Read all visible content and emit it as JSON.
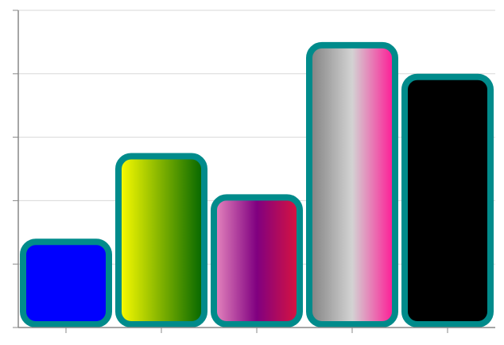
{
  "chart_data": {
    "type": "bar",
    "categories": [
      null,
      null,
      null,
      null,
      null
    ],
    "values": [
      1.4,
      2.75,
      2.1,
      4.5,
      4.0
    ],
    "colors": [
      [
        "#0000ff"
      ],
      [
        "#ffff00",
        "#006400"
      ],
      [
        "#e88ac0",
        "#800080",
        "#dc143c"
      ],
      [
        "#808080",
        "#d3d3d3",
        "#ff1493"
      ],
      [
        "#000000"
      ]
    ],
    "border_color": "#008b8b",
    "ylim": [
      0,
      5
    ],
    "yticks": [
      0,
      1,
      2,
      3,
      4,
      5
    ],
    "grid": true
  }
}
